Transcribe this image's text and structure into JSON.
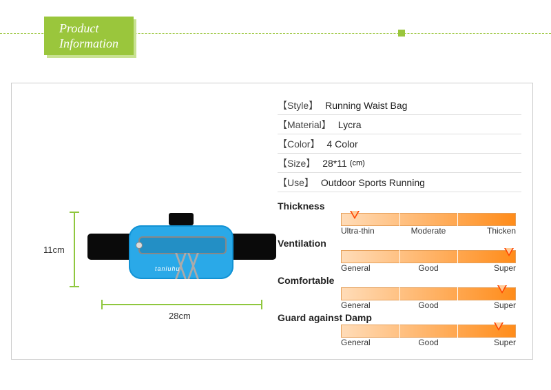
{
  "header": {
    "line1": "Product",
    "line2": "Information",
    "badge_bg": "#9ac63c",
    "line_color": "#9ac63c"
  },
  "dimensions": {
    "height_label": "11cm",
    "width_label": "28cm",
    "guide_color": "#8fc73e"
  },
  "product_logo": "tanluhu",
  "specs": [
    {
      "key": "Style",
      "value": "Running Waist Bag"
    },
    {
      "key": "Material",
      "value": "Lycra"
    },
    {
      "key": "Color",
      "value": "4 Color"
    },
    {
      "key": "Size",
      "value": "28*11",
      "unit": "(cm)"
    },
    {
      "key": "Use",
      "value": "Outdoor Sports Running"
    }
  ],
  "ratings": [
    {
      "label": "Thickness",
      "ticks": [
        "Ultra-thin",
        "Moderate",
        "Thicken"
      ],
      "pointer_pct": 8
    },
    {
      "label": "Ventilation",
      "ticks": [
        "General",
        "Good",
        "Super"
      ],
      "pointer_pct": 96
    },
    {
      "label": "Comfortable",
      "ticks": [
        "General",
        "Good",
        "Super"
      ],
      "pointer_pct": 92
    },
    {
      "label": "Guard against Damp",
      "ticks": [
        "General",
        "Good",
        "Super"
      ],
      "pointer_pct": 90
    }
  ],
  "colors": {
    "bar_gradient_from": "#ffdcb8",
    "bar_gradient_to": "#ff8c1a",
    "pointer_color": "#ff4400",
    "bag_body": "#2aa9e8",
    "bag_strap": "#0a0a0a"
  }
}
